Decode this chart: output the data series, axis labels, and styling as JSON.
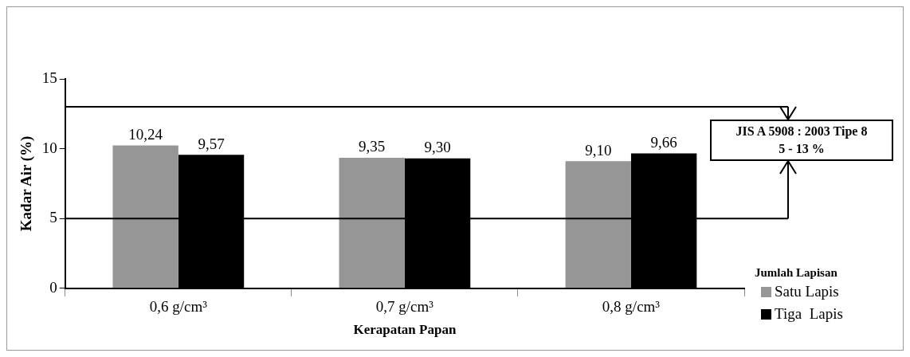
{
  "chart_data": {
    "type": "bar",
    "xlabel": "Kerapatan Papan",
    "ylabel": "Kadar Air (%)",
    "legend_title": "Jumlah Lapisan",
    "legend": "right",
    "categories": [
      "0,6 g/cm³",
      "0,7 g/cm³",
      "0,8 g/cm³"
    ],
    "series": [
      {
        "name": "Satu Lapis",
        "color": "#969696",
        "values": [
          10.24,
          9.35,
          9.1
        ],
        "value_labels": [
          "10,24",
          "9,35",
          "9,10"
        ]
      },
      {
        "name": "Tiga  Lapis",
        "color": "#000000",
        "values": [
          9.57,
          9.3,
          9.66
        ],
        "value_labels": [
          "9,57",
          "9,30",
          "9,66"
        ]
      }
    ],
    "ylim": [
      0,
      15
    ],
    "yticks": [
      0,
      5,
      10,
      15
    ],
    "ref_lines": [
      {
        "axis": "y",
        "value": 13,
        "color": "#000000"
      },
      {
        "axis": "y",
        "value": 5,
        "color": "#000000"
      }
    ],
    "annotations": [
      "JIS A 5908 : 2003 Tipe 8",
      "5 - 13 %"
    ]
  }
}
